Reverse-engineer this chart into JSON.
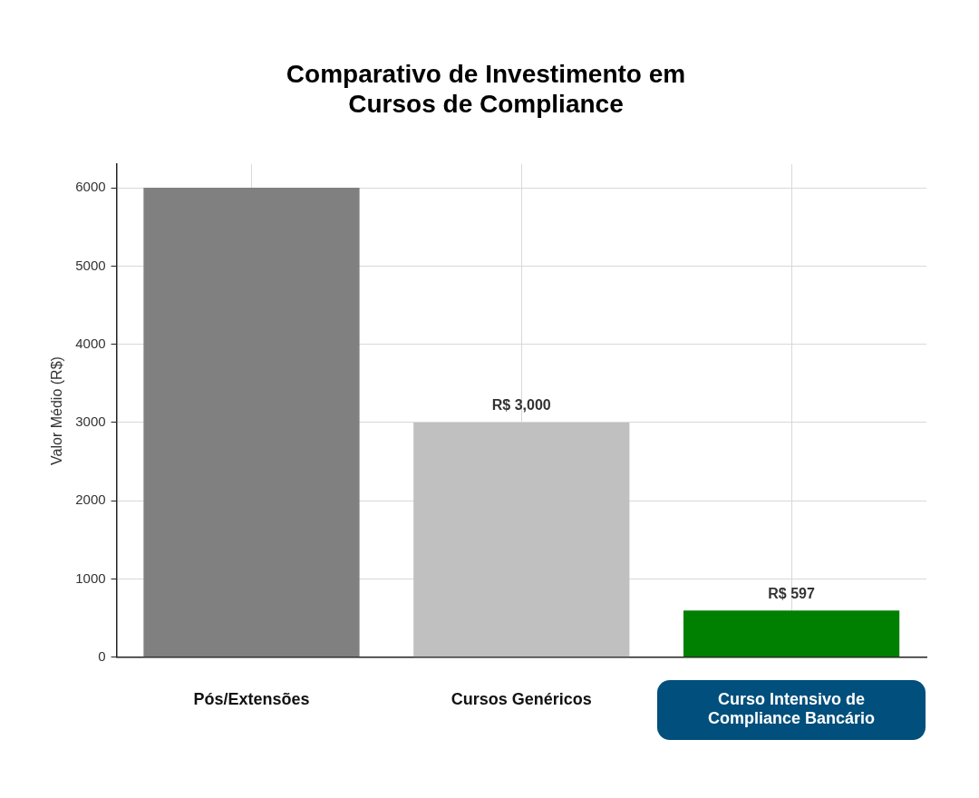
{
  "chart_data": {
    "type": "bar",
    "title": "Comparativo de Investimento em\nCursos de Compliance",
    "ylabel": "Valor Médio (R$)",
    "categories": [
      "Pós/Extensões",
      "Cursos Genéricos",
      "Curso Intensivo de Compliance Bancário"
    ],
    "values": [
      6000,
      3000,
      597
    ],
    "colors": [
      "#808080",
      "#c0c0c0",
      "#008000"
    ],
    "value_labels": [
      null,
      "R$ 3,000",
      "R$ 597"
    ],
    "ylim": [
      0,
      6300
    ],
    "yticks": [
      0,
      1000,
      2000,
      3000,
      4000,
      5000,
      6000
    ],
    "grid": true
  }
}
